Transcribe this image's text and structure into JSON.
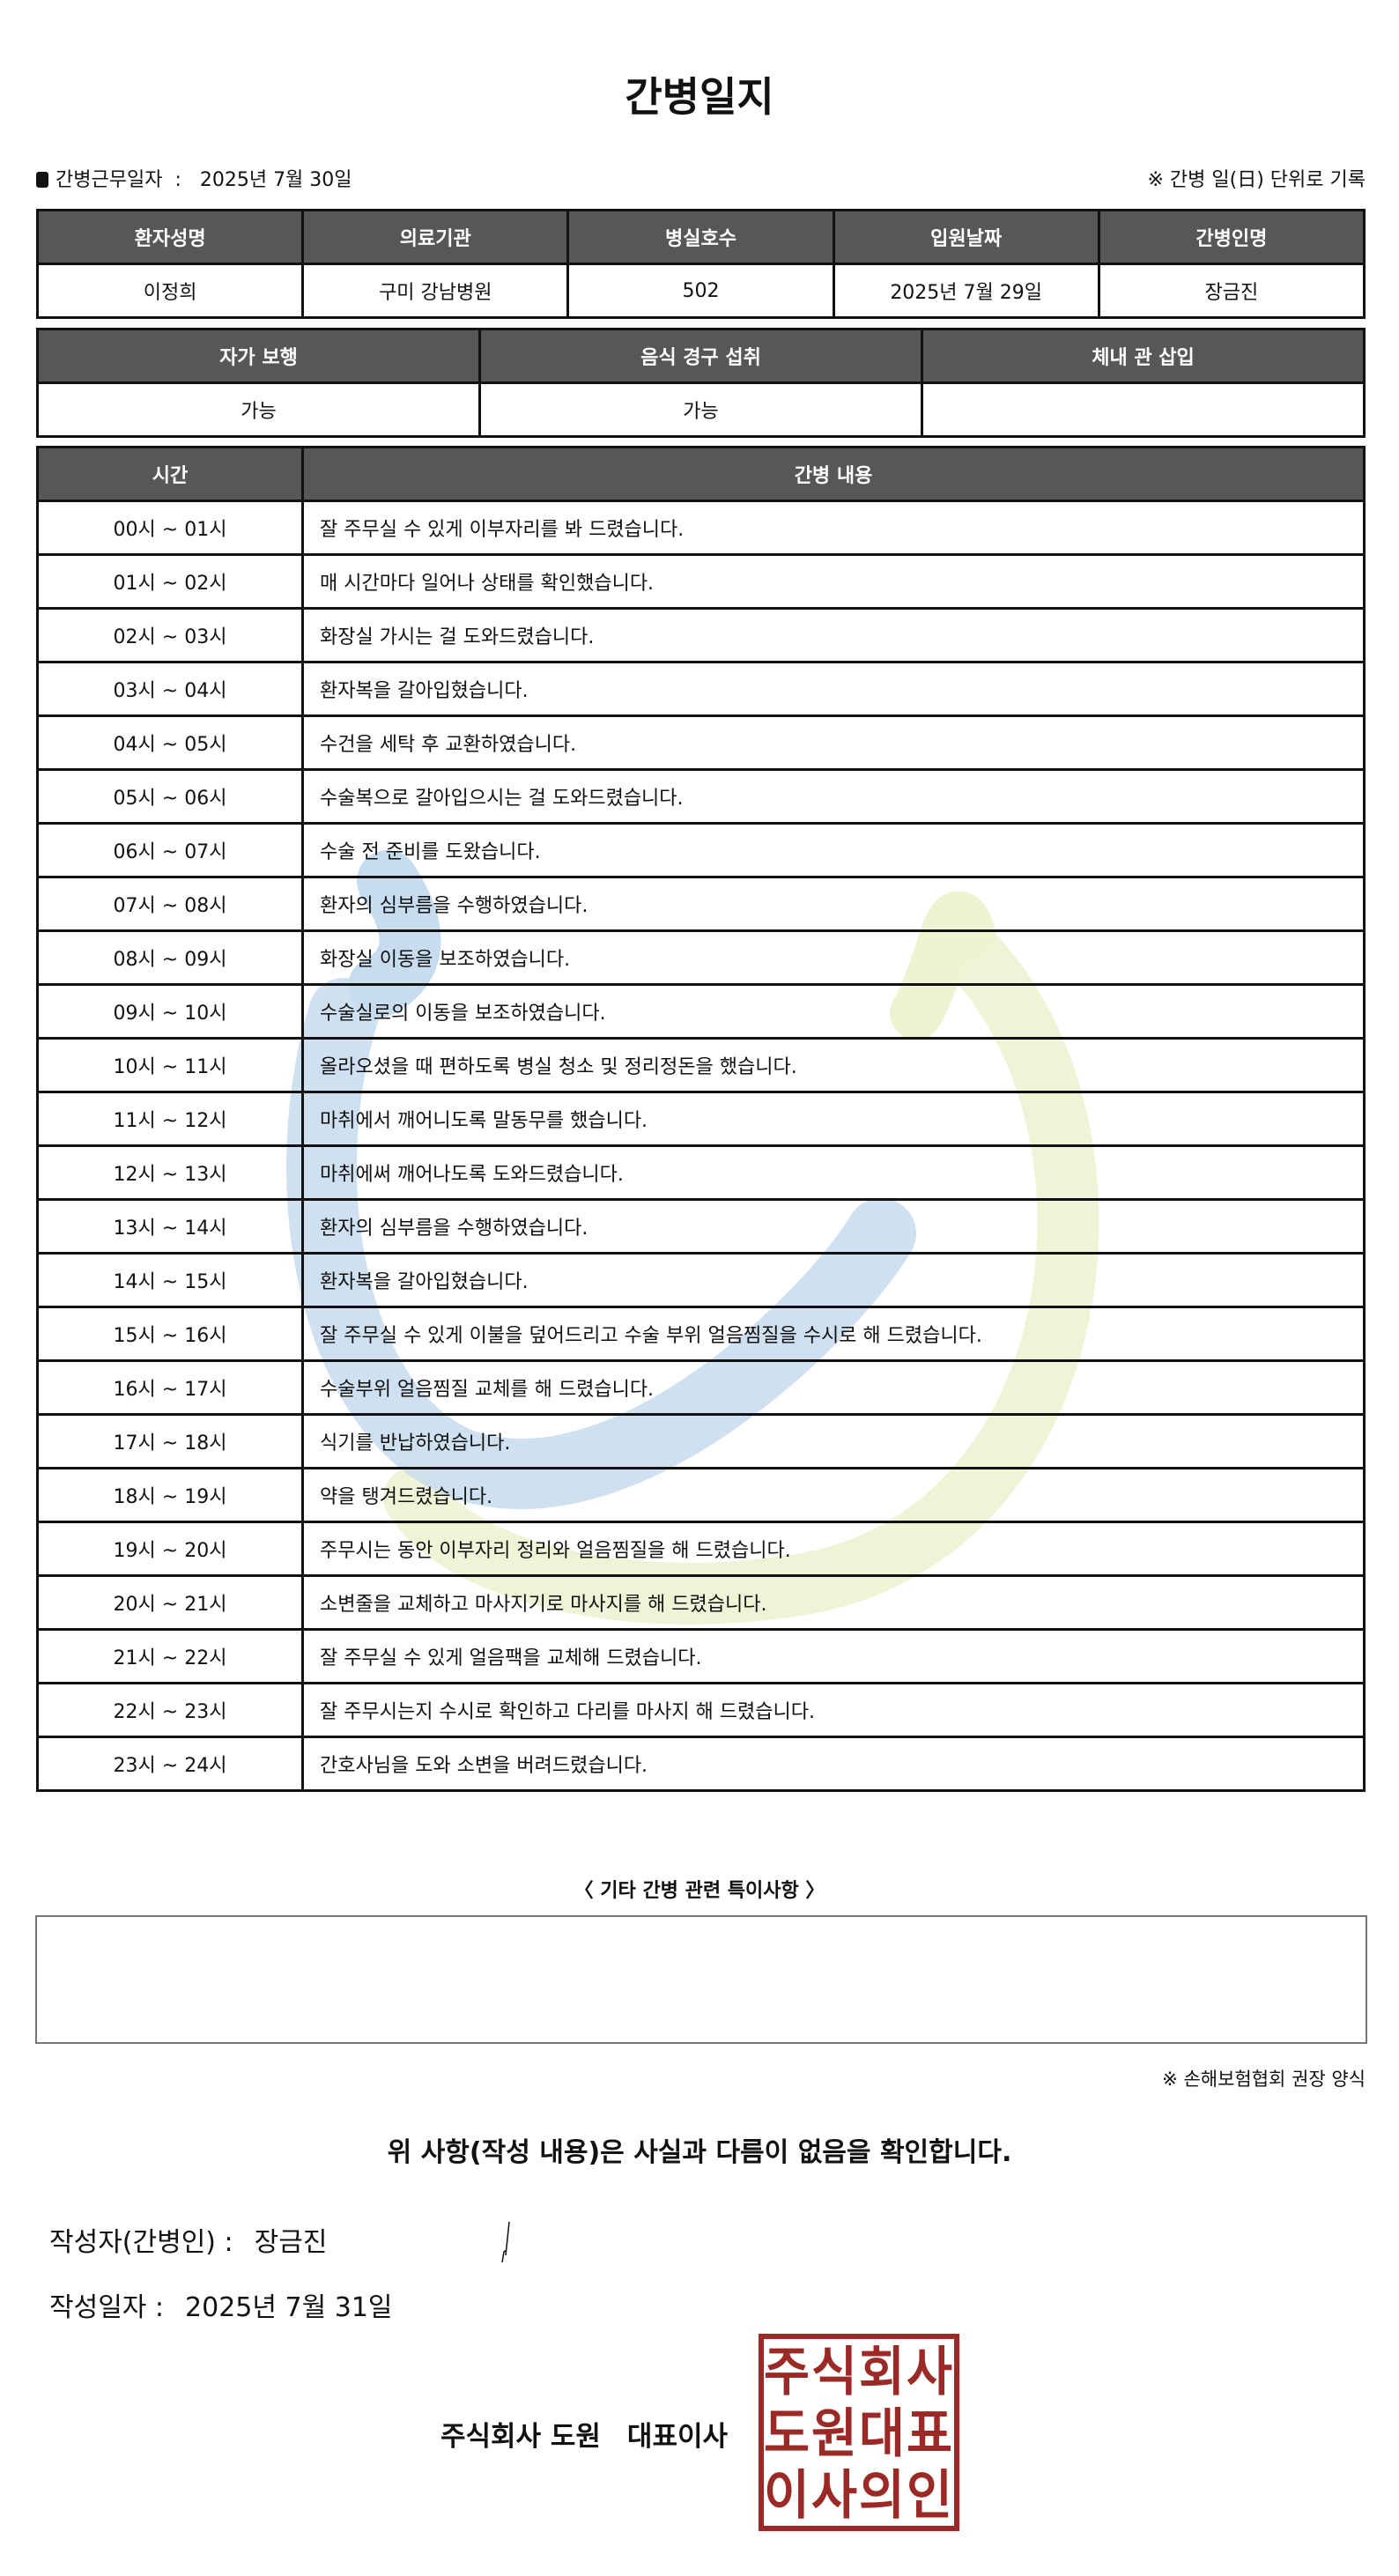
{
  "title": "간병일지",
  "work_date_label": "간병근무일자",
  "work_date": "2025년 7월 30일",
  "record_unit_note": "※ 간병 일(日) 단위로 기록",
  "info_table": {
    "headers": [
      "환자성명",
      "의료기관",
      "병실호수",
      "입원날짜",
      "간병인명"
    ],
    "values": [
      "이정희",
      "구미 강남병원",
      "502",
      "2025년 7월 29일",
      "장금진"
    ]
  },
  "status_table": {
    "headers": [
      "자가 보행",
      "음식 경구 섭취",
      "체내 관 삽입"
    ],
    "values": [
      "가능",
      "가능",
      ""
    ]
  },
  "log_table": {
    "headers": [
      "시간",
      "간병 내용"
    ],
    "rows": [
      {
        "time": "00시 ~ 01시",
        "content": "잘 주무실 수 있게 이부자리를 봐 드렸습니다."
      },
      {
        "time": "01시 ~ 02시",
        "content": "매 시간마다 일어나 상태를 확인했습니다."
      },
      {
        "time": "02시 ~ 03시",
        "content": "화장실 가시는 걸 도와드렸습니다."
      },
      {
        "time": "03시 ~ 04시",
        "content": "환자복을 갈아입혔습니다."
      },
      {
        "time": "04시 ~ 05시",
        "content": "수건을 세탁 후 교환하였습니다."
      },
      {
        "time": "05시 ~ 06시",
        "content": "수술복으로 갈아입으시는 걸 도와드렸습니다."
      },
      {
        "time": "06시 ~ 07시",
        "content": "수술 전 준비를 도왔습니다."
      },
      {
        "time": "07시 ~ 08시",
        "content": "환자의 심부름을 수행하였습니다."
      },
      {
        "time": "08시 ~ 09시",
        "content": "화장실 이동을 보조하였습니다."
      },
      {
        "time": "09시 ~ 10시",
        "content": "수술실로의 이동을 보조하였습니다."
      },
      {
        "time": "10시 ~ 11시",
        "content": "올라오셨을 때 편하도록 병실 청소 및 정리정돈을 했습니다."
      },
      {
        "time": "11시 ~ 12시",
        "content": "마취에서 깨어니도록 말동무를 했습니다."
      },
      {
        "time": "12시 ~ 13시",
        "content": "마취에써 깨어나도록 도와드렸습니다."
      },
      {
        "time": "13시 ~ 14시",
        "content": "환자의 심부름을 수행하였습니다."
      },
      {
        "time": "14시 ~ 15시",
        "content": "환자복을 갈아입혔습니다."
      },
      {
        "time": "15시 ~ 16시",
        "content": "잘 주무실 수 있게 이불을 덮어드리고 수술 부위 얼음찜질을 수시로 해 드렸습니다."
      },
      {
        "time": "16시 ~ 17시",
        "content": "수술부위 얼음찜질 교체를 해 드렸습니다."
      },
      {
        "time": "17시 ~ 18시",
        "content": "식기를 반납하였습니다."
      },
      {
        "time": "18시 ~ 19시",
        "content": "약을 탱겨드렸습니다."
      },
      {
        "time": "19시 ~ 20시",
        "content": "주무시는 동안 이부자리 정리와 얼음찜질을 해 드렸습니다."
      },
      {
        "time": "20시 ~ 21시",
        "content": "소변줄을 교체하고 마사지기로 마사지를 해 드렸습니다."
      },
      {
        "time": "21시 ~ 22시",
        "content": "잘 주무실 수 있게 얼음팩을 교체해 드렸습니다."
      },
      {
        "time": "22시 ~ 23시",
        "content": "잘 주무시는지 수시로 확인하고 다리를 마사지 해 드렸습니다."
      },
      {
        "time": "23시 ~ 24시",
        "content": "간호사님을 도와 소변을 버려드렸습니다."
      }
    ]
  },
  "notes_label": "〈 기타 간병 관련 특이사항 〉",
  "notes": "",
  "form_source_note": "※ 손해보험협회 권장 양식",
  "confirmation": "위 사항(작성 내용)은 사실과 다름이 없음을 확인합니다.",
  "writer_label": "작성자(간병인) :",
  "writer_name": "장금진",
  "written_date_label": "작성일자 :",
  "written_date": "2025년 7월 31일",
  "company": "주식회사 도원",
  "ceo_title": "대표이사",
  "stamp_text": "주식회사도원대표이사의인",
  "colors": {
    "header_bg": "#575757",
    "stamp": "#9b2a26",
    "watermark_blue": "#c7dcef",
    "watermark_green": "#eef3d2"
  }
}
